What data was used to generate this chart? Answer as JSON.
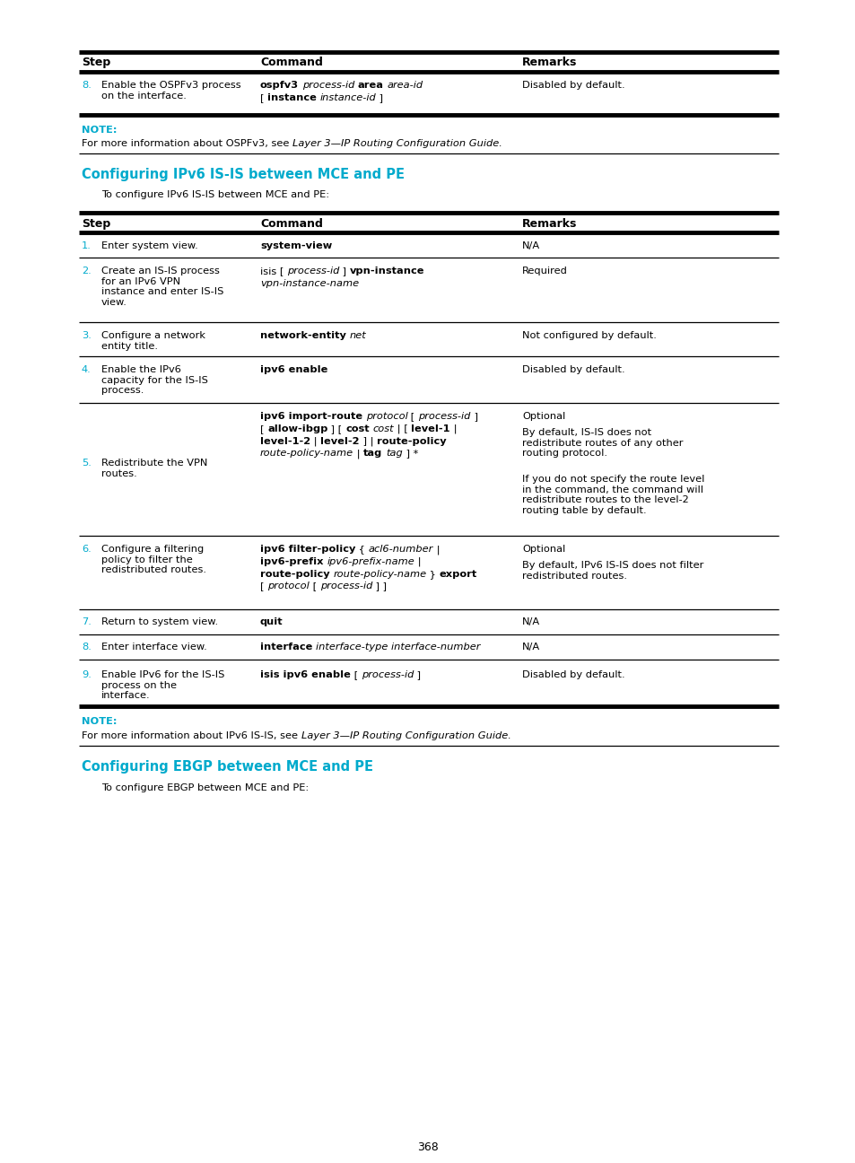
{
  "bg_color": "#ffffff",
  "cyan_color": "#00aacc",
  "page_number": "368",
  "section1_title": "Configuring IPv6 IS-IS between MCE and PE",
  "section1_intro": "To configure IPv6 IS-IS between MCE and PE:",
  "note2_label": "NOTE:",
  "note2_text": "For more information about IPv6 IS-IS, see",
  "note2_italic": " Layer 3—IP Routing Configuration Guide.",
  "note1_label": "NOTE:",
  "note1_text": "For more information about OSPFv3, see",
  "note1_italic": " Layer 3—IP Routing Configuration Guide.",
  "section2_title": "Configuring EBGP between MCE and PE",
  "section2_intro": "To configure EBGP between MCE and PE:"
}
